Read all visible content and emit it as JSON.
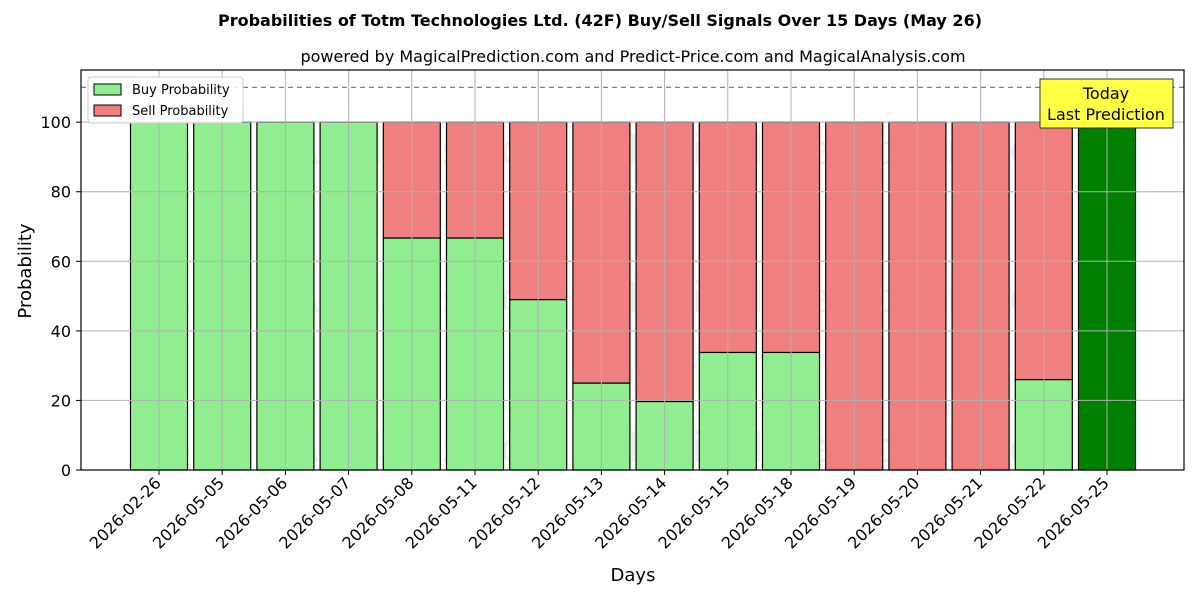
{
  "chart_data": {
    "type": "bar",
    "stacked": true,
    "title": "Probabilities of Totm Technologies Ltd. (42F) Buy/Sell Signals Over 15 Days (May 26)",
    "subtitle": "powered by MagicalPrediction.com and Predict-Price.com and MagicalAnalysis.com",
    "xlabel": "Days",
    "ylabel": "Probability",
    "ylim": [
      0,
      115
    ],
    "yticks": [
      0,
      20,
      40,
      60,
      80,
      100
    ],
    "grid": true,
    "reference_line": 110,
    "legend_position": "top-left",
    "categories": [
      "2026-02-26",
      "2026-05-05",
      "2026-05-06",
      "2026-05-07",
      "2026-05-08",
      "2026-05-11",
      "2026-05-12",
      "2026-05-13",
      "2026-05-14",
      "2026-05-15",
      "2026-05-18",
      "2026-05-19",
      "2026-05-20",
      "2026-05-21",
      "2026-05-22",
      "2026-05-25"
    ],
    "series": [
      {
        "name": "Buy Probability",
        "color": "#90ee90",
        "values": [
          100,
          100,
          100,
          100,
          66.7,
          66.7,
          49,
          25,
          19.7,
          33.8,
          33.8,
          0,
          0,
          0,
          26,
          100
        ]
      },
      {
        "name": "Sell Probability",
        "color": "#f08080",
        "values": [
          0,
          0,
          0,
          0,
          33.3,
          33.3,
          51,
          75,
          80.3,
          66.2,
          66.2,
          100,
          100,
          100,
          74,
          0
        ]
      }
    ],
    "highlight": {
      "index": 15,
      "color": "#008000"
    },
    "annotation": {
      "line1": "Today",
      "line2": "Last Prediction",
      "color": "#ffff44"
    },
    "watermarks": [
      "MagicalAnalysis.com",
      "MagicalPrediction.com"
    ]
  }
}
